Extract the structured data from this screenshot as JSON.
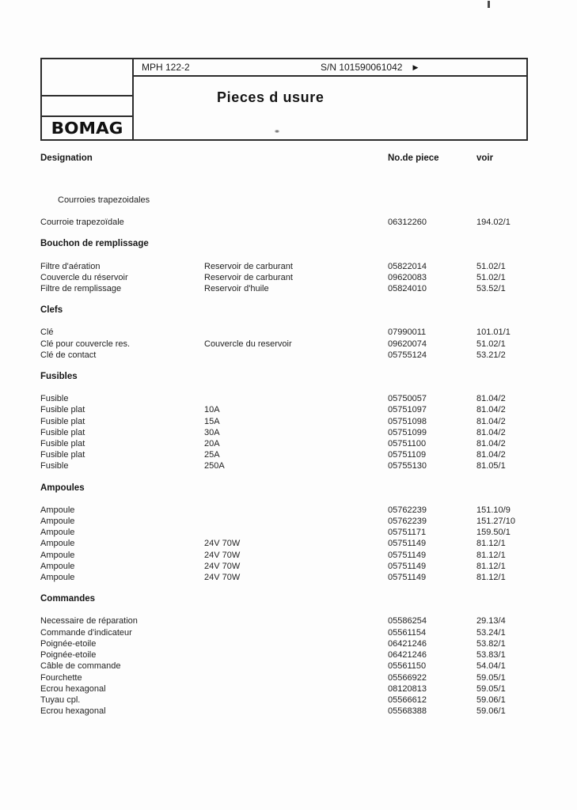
{
  "header": {
    "logo": "BOMAG",
    "model": "MPH 122-2",
    "serial": "S/N 101590061042",
    "arrow_icon": "▶",
    "title": "Pieces d usure"
  },
  "columns": {
    "designation": "Designation",
    "part_no": "No.de piece",
    "see": "voir"
  },
  "sections": [
    {
      "heading": "Courroies trapezoidales",
      "heading_style": "indented-plain",
      "rows": [
        {
          "designation": "Courroie trapezoïdale",
          "detail": "",
          "part_no": "06312260",
          "see": "194.02/1"
        }
      ]
    },
    {
      "heading": "Bouchon de remplissage",
      "heading_style": "bold",
      "rows": [
        {
          "designation": "Filtre d'aération",
          "detail": "Reservoir de carburant",
          "part_no": "05822014",
          "see": "51.02/1"
        },
        {
          "designation": "Couvercle du réservoir",
          "detail": "Reservoir de carburant",
          "part_no": "09620083",
          "see": "51.02/1"
        },
        {
          "designation": "Filtre de remplissage",
          "detail": "Reservoir d'huile",
          "part_no": "05824010",
          "see": "53.52/1"
        }
      ]
    },
    {
      "heading": "Clefs",
      "heading_style": "bold",
      "rows": [
        {
          "designation": "Clé",
          "detail": "",
          "part_no": "07990011",
          "see": "101.01/1"
        },
        {
          "designation": "Clé pour couvercle res.",
          "detail": "Couvercle du reservoir",
          "part_no": "09620074",
          "see": "51.02/1"
        },
        {
          "designation": "Clé de contact",
          "detail": "",
          "part_no": "05755124",
          "see": "53.21/2"
        }
      ]
    },
    {
      "heading": "Fusibles",
      "heading_style": "bold",
      "rows": [
        {
          "designation": "Fusible",
          "detail": "",
          "part_no": "05750057",
          "see": "81.04/2"
        },
        {
          "designation": "Fusible plat",
          "detail": "10A",
          "part_no": "05751097",
          "see": "81.04/2"
        },
        {
          "designation": "Fusible plat",
          "detail": "15A",
          "part_no": "05751098",
          "see": "81.04/2"
        },
        {
          "designation": "Fusible plat",
          "detail": "30A",
          "part_no": "05751099",
          "see": "81.04/2"
        },
        {
          "designation": "Fusible plat",
          "detail": "20A",
          "part_no": "05751100",
          "see": "81.04/2"
        },
        {
          "designation": "Fusible plat",
          "detail": "25A",
          "part_no": "05751109",
          "see": "81.04/2"
        },
        {
          "designation": "Fusible",
          "detail": "250A",
          "part_no": "05755130",
          "see": "81.05/1"
        }
      ]
    },
    {
      "heading": "Ampoules",
      "heading_style": "bold",
      "rows": [
        {
          "designation": "Ampoule",
          "detail": "",
          "part_no": "05762239",
          "see": "151.10/9"
        },
        {
          "designation": "Ampoule",
          "detail": "",
          "part_no": "05762239",
          "see": "151.27/10"
        },
        {
          "designation": "Ampoule",
          "detail": "",
          "part_no": "05751171",
          "see": "159.50/1"
        },
        {
          "designation": "Ampoule",
          "detail": "24V 70W",
          "part_no": "05751149",
          "see": "81.12/1"
        },
        {
          "designation": "Ampoule",
          "detail": "24V 70W",
          "part_no": "05751149",
          "see": "81.12/1"
        },
        {
          "designation": "Ampoule",
          "detail": "24V 70W",
          "part_no": "05751149",
          "see": "81.12/1"
        },
        {
          "designation": "Ampoule",
          "detail": "24V 70W",
          "part_no": "05751149",
          "see": "81.12/1"
        }
      ]
    },
    {
      "heading": "Commandes",
      "heading_style": "bold",
      "rows": [
        {
          "designation": "Necessaire de réparation",
          "detail": "",
          "part_no": "05586254",
          "see": "29.13/4"
        },
        {
          "designation": "Commande d'indicateur",
          "detail": "",
          "part_no": "05561154",
          "see": "53.24/1"
        },
        {
          "designation": "Poignée-etoile",
          "detail": "",
          "part_no": "06421246",
          "see": "53.82/1"
        },
        {
          "designation": "Poignée-etoile",
          "detail": "",
          "part_no": "06421246",
          "see": "53.83/1"
        },
        {
          "designation": "Câble de commande",
          "detail": "",
          "part_no": "05561150",
          "see": "54.04/1"
        },
        {
          "designation": "Fourchette",
          "detail": "",
          "part_no": "05566922",
          "see": "59.05/1"
        },
        {
          "designation": "Ecrou hexagonal",
          "detail": "",
          "part_no": "08120813",
          "see": "59.05/1"
        },
        {
          "designation": "Tuyau cpl.",
          "detail": "",
          "part_no": "05566612",
          "see": "59.06/1"
        },
        {
          "designation": "Ecrou hexagonal",
          "detail": "",
          "part_no": "05568388",
          "see": "59.06/1"
        }
      ]
    }
  ]
}
